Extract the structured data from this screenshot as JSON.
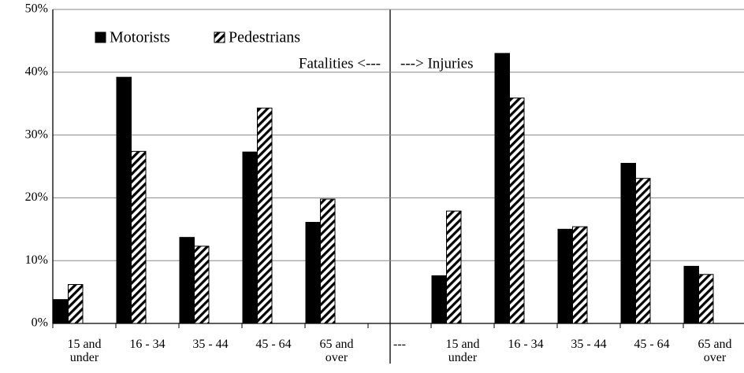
{
  "chart_data": {
    "type": "bar",
    "categories": [
      "15 and under",
      "16 - 34",
      "35 - 44",
      "45 - 64",
      "65 and over",
      "---",
      "15 and under",
      "16 - 34",
      "35 - 44",
      "45 - 64",
      "65 and over"
    ],
    "series": [
      {
        "name": "Motorists",
        "color": "#000000",
        "pattern": "solid",
        "values": [
          3.8,
          39.2,
          13.7,
          27.3,
          16.1,
          null,
          7.6,
          43.0,
          15.0,
          25.5,
          9.1
        ]
      },
      {
        "name": "Pedestrians",
        "color": "#000000",
        "pattern": "hatch",
        "values": [
          6.2,
          27.4,
          12.3,
          34.3,
          19.8,
          null,
          17.9,
          35.9,
          15.4,
          23.1,
          7.8
        ]
      }
    ],
    "annotations": [
      "Fatalities <---",
      "---> Injuries"
    ],
    "ylim": [
      0,
      50
    ],
    "yticks": [
      {
        "value": 0,
        "label": "0%"
      },
      {
        "value": 10,
        "label": "10%"
      },
      {
        "value": 20,
        "label": "20%"
      },
      {
        "value": 30,
        "label": "30%"
      },
      {
        "value": 40,
        "label": "40%"
      },
      {
        "value": 50,
        "label": "50%"
      }
    ],
    "grid": true
  }
}
